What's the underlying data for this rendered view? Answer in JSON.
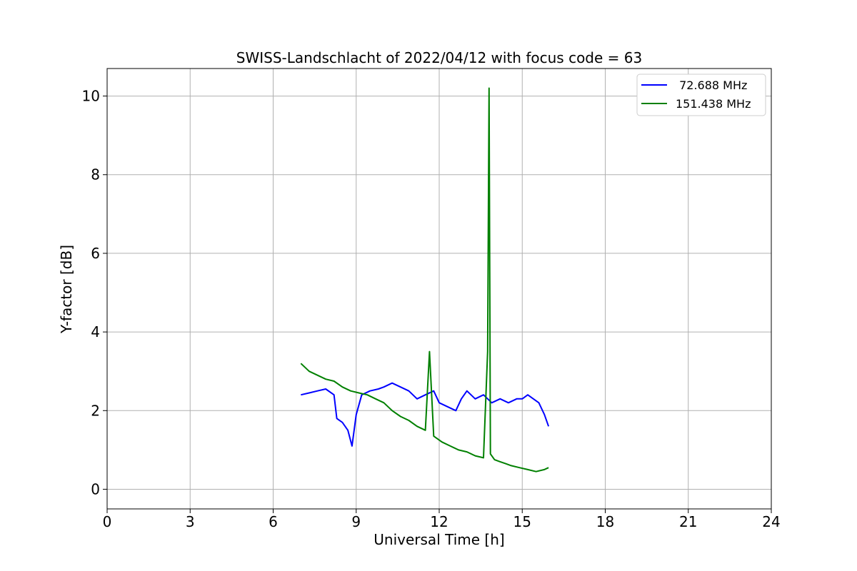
{
  "chart_data": {
    "type": "line",
    "title": "SWISS-Landschlacht of 2022/04/12 with focus code = 63",
    "xlabel": "Universal Time [h]",
    "ylabel": "Y-factor [dB]",
    "xlim": [
      0,
      24
    ],
    "ylim": [
      -0.5,
      10.7
    ],
    "x_ticks": [
      0,
      3,
      6,
      9,
      12,
      15,
      18,
      21,
      24
    ],
    "y_ticks": [
      0,
      2,
      4,
      6,
      8,
      10
    ],
    "grid": true,
    "legend_position": "top-right",
    "series": [
      {
        "name": " 72.688 MHz",
        "color": "#0000ff",
        "x": [
          7.0,
          7.3,
          7.6,
          7.9,
          8.2,
          8.3,
          8.5,
          8.7,
          8.85,
          9.0,
          9.2,
          9.5,
          9.8,
          10.0,
          10.3,
          10.6,
          10.9,
          11.2,
          11.5,
          11.8,
          12.0,
          12.3,
          12.6,
          12.8,
          13.0,
          13.3,
          13.6,
          13.9,
          14.2,
          14.5,
          14.8,
          15.0,
          15.2,
          15.4,
          15.6,
          15.8,
          15.95
        ],
        "values": [
          2.4,
          2.45,
          2.5,
          2.55,
          2.4,
          1.8,
          1.7,
          1.5,
          1.1,
          1.9,
          2.4,
          2.5,
          2.55,
          2.6,
          2.7,
          2.6,
          2.5,
          2.3,
          2.4,
          2.5,
          2.2,
          2.1,
          2.0,
          2.3,
          2.5,
          2.3,
          2.4,
          2.2,
          2.3,
          2.2,
          2.3,
          2.3,
          2.4,
          2.3,
          2.2,
          1.9,
          1.6
        ]
      },
      {
        "name": "151.438 MHz",
        "color": "#008000",
        "x": [
          7.0,
          7.3,
          7.6,
          7.9,
          8.2,
          8.5,
          8.8,
          9.1,
          9.4,
          9.7,
          10.0,
          10.3,
          10.6,
          10.9,
          11.2,
          11.5,
          11.65,
          11.8,
          12.1,
          12.4,
          12.7,
          13.0,
          13.3,
          13.6,
          13.75,
          13.8,
          13.85,
          14.0,
          14.2,
          14.4,
          14.6,
          14.9,
          15.2,
          15.5,
          15.8,
          15.95
        ],
        "values": [
          3.2,
          3.0,
          2.9,
          2.8,
          2.75,
          2.6,
          2.5,
          2.45,
          2.4,
          2.3,
          2.2,
          2.0,
          1.85,
          1.75,
          1.6,
          1.5,
          3.5,
          1.35,
          1.2,
          1.1,
          1.0,
          0.95,
          0.85,
          0.8,
          3.5,
          10.2,
          0.9,
          0.75,
          0.7,
          0.65,
          0.6,
          0.55,
          0.5,
          0.45,
          0.5,
          0.55
        ]
      }
    ]
  }
}
